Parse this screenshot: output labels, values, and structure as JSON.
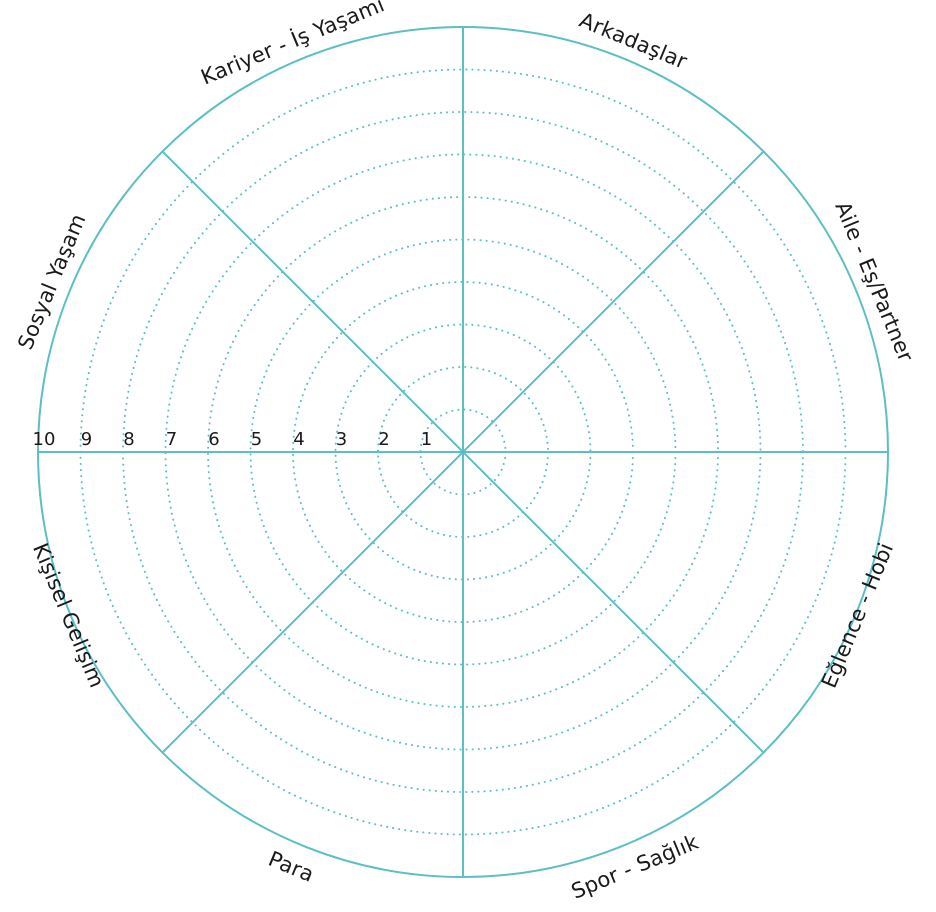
{
  "wheel": {
    "segments": [
      "Arkadaşlar",
      "Aile - Eş/Partner",
      "Eğlence - Hobi",
      "Spor - Sağlık",
      "Para",
      "Kişisel Gelişim",
      "Sosyal Yaşam",
      "Kariyer - İş Yaşamı"
    ],
    "scale": [
      "1",
      "2",
      "3",
      "4",
      "5",
      "6",
      "7",
      "8",
      "9",
      "10"
    ],
    "colors": {
      "line": "#5bbfc4",
      "text": "#1a1a1a"
    }
  }
}
